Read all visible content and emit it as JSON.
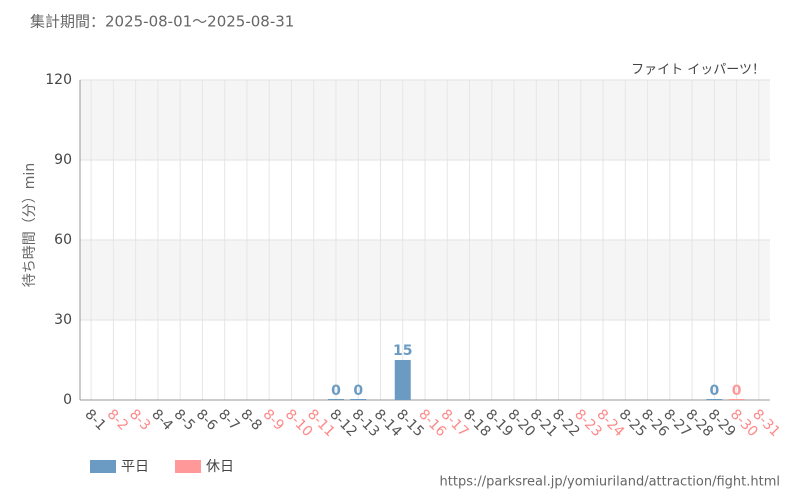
{
  "chart_data": {
    "type": "bar",
    "title": "集計期間：2025-08-01～2025-08-31",
    "annotation": "ファイト イッパーツ！",
    "y_label": "待ち時間（分）min",
    "source": "https://parksreal.jp/yomiuriland/attraction/fight.html",
    "categories": [
      "8-1",
      "8-2",
      "8-3",
      "8-4",
      "8-5",
      "8-6",
      "8-7",
      "8-8",
      "8-9",
      "8-10",
      "8-11",
      "8-12",
      "8-13",
      "8-14",
      "8-15",
      "8-16",
      "8-17",
      "8-18",
      "8-19",
      "8-20",
      "8-21",
      "8-22",
      "8-23",
      "8-24",
      "8-25",
      "8-26",
      "8-27",
      "8-28",
      "8-29",
      "8-30",
      "8-31"
    ],
    "category_colors": [
      "#555",
      "#ff8888",
      "#ff8888",
      "#555",
      "#555",
      "#555",
      "#555",
      "#555",
      "#ff8888",
      "#ff8888",
      "#ff8888",
      "#555",
      "#555",
      "#555",
      "#555",
      "#ff8888",
      "#ff8888",
      "#555",
      "#555",
      "#555",
      "#555",
      "#555",
      "#ff8888",
      "#ff8888",
      "#555",
      "#555",
      "#555",
      "#555",
      "#555",
      "#ff8888",
      "#ff8888"
    ],
    "series": [
      {
        "name": "平日",
        "color": "#6b9bc3",
        "values": [
          null,
          null,
          null,
          null,
          null,
          null,
          null,
          null,
          null,
          null,
          null,
          0,
          0,
          null,
          15,
          null,
          null,
          null,
          null,
          null,
          null,
          null,
          null,
          null,
          null,
          null,
          null,
          null,
          0,
          null,
          null
        ]
      },
      {
        "name": "休日",
        "color": "#ff9999",
        "values": [
          null,
          null,
          null,
          null,
          null,
          null,
          null,
          null,
          null,
          null,
          null,
          null,
          null,
          null,
          null,
          null,
          null,
          null,
          null,
          null,
          null,
          null,
          null,
          null,
          null,
          null,
          null,
          null,
          null,
          0,
          null
        ]
      }
    ],
    "ylim": [
      0,
      120
    ],
    "yticks": [
      0,
      30,
      60,
      90,
      120
    ],
    "grid": true
  }
}
